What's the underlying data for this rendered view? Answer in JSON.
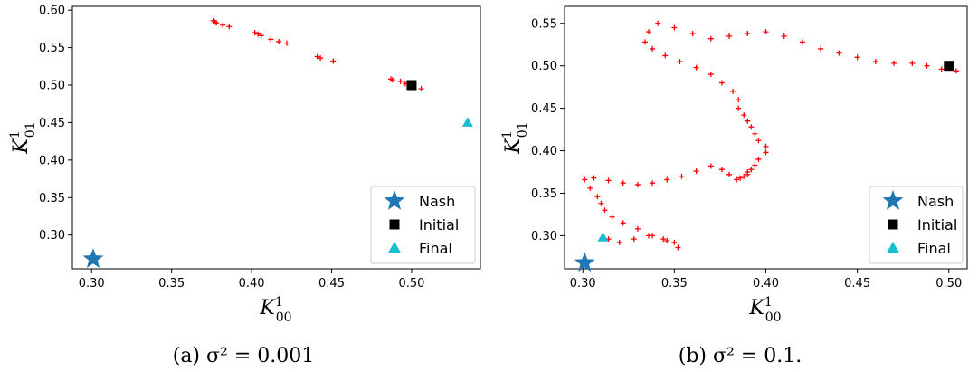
{
  "chart_data": [
    {
      "type": "scatter",
      "caption": "(a) σ² = 0.001",
      "xlabel": "K¹₀₀",
      "ylabel": "K¹₀₁",
      "xlim": [
        0.288,
        0.543
      ],
      "ylim": [
        0.255,
        0.605
      ],
      "xticks": [
        "0.30",
        "0.35",
        "0.40",
        "0.45",
        "0.50"
      ],
      "yticks": [
        "0.30",
        "0.35",
        "0.40",
        "0.45",
        "0.50",
        "0.55",
        "0.60"
      ],
      "grid": false,
      "legend_position": "lower-right",
      "legend": [
        {
          "label": "Nash",
          "marker": "star",
          "color": "#1f77b4"
        },
        {
          "label": "Initial",
          "marker": "square",
          "color": "#000000"
        },
        {
          "label": "Final",
          "marker": "triangle",
          "color": "#17becf"
        }
      ],
      "trajectory_color": "#ff0000",
      "nash": [
        0.301,
        0.268
      ],
      "initial": [
        0.5,
        0.5
      ],
      "final": [
        0.535,
        0.45
      ],
      "trajectory": {
        "x": [
          0.376,
          0.377,
          0.378,
          0.382,
          0.386,
          0.402,
          0.404,
          0.406,
          0.412,
          0.417,
          0.422,
          0.441,
          0.443,
          0.451,
          0.487,
          0.488,
          0.493,
          0.496,
          0.5,
          0.506
        ],
        "y": [
          0.586,
          0.584,
          0.583,
          0.58,
          0.578,
          0.57,
          0.568,
          0.566,
          0.561,
          0.558,
          0.556,
          0.538,
          0.536,
          0.532,
          0.508,
          0.507,
          0.505,
          0.502,
          0.5,
          0.495
        ]
      }
    },
    {
      "type": "scatter",
      "caption": "(b) σ² = 0.1.",
      "xlabel": "K¹₀₀",
      "ylabel": "K¹₀₁",
      "xlim": [
        0.29,
        0.51
      ],
      "ylim": [
        0.261,
        0.57
      ],
      "xticks": [
        "0.30",
        "0.35",
        "0.40",
        "0.45",
        "0.50"
      ],
      "yticks": [
        "0.30",
        "0.35",
        "0.40",
        "0.45",
        "0.50",
        "0.55"
      ],
      "grid": false,
      "legend_position": "lower-right",
      "legend": [
        {
          "label": "Nash",
          "marker": "star",
          "color": "#1f77b4"
        },
        {
          "label": "Initial",
          "marker": "square",
          "color": "#000000"
        },
        {
          "label": "Final",
          "marker": "triangle",
          "color": "#17becf"
        }
      ],
      "trajectory_color": "#ff0000",
      "nash": [
        0.301,
        0.268
      ],
      "initial": [
        0.5,
        0.5
      ],
      "final": [
        0.311,
        0.298
      ],
      "trajectory": {
        "x": [
          0.5,
          0.504,
          0.496,
          0.488,
          0.48,
          0.47,
          0.46,
          0.45,
          0.44,
          0.43,
          0.42,
          0.41,
          0.4,
          0.39,
          0.38,
          0.37,
          0.36,
          0.35,
          0.341,
          0.336,
          0.334,
          0.338,
          0.345,
          0.353,
          0.362,
          0.37,
          0.376,
          0.382,
          0.385,
          0.385,
          0.388,
          0.39,
          0.392,
          0.394,
          0.396,
          0.4,
          0.4,
          0.396,
          0.394,
          0.392,
          0.39,
          0.39,
          0.388,
          0.386,
          0.384,
          0.38,
          0.376,
          0.37,
          0.362,
          0.354,
          0.346,
          0.338,
          0.33,
          0.322,
          0.314,
          0.306,
          0.301,
          0.304,
          0.308,
          0.31,
          0.312,
          0.316,
          0.322,
          0.33,
          0.338,
          0.346,
          0.352,
          0.35,
          0.344,
          0.336,
          0.328,
          0.32,
          0.314
        ],
        "y": [
          0.5,
          0.494,
          0.496,
          0.5,
          0.503,
          0.503,
          0.505,
          0.51,
          0.515,
          0.52,
          0.528,
          0.535,
          0.54,
          0.538,
          0.535,
          0.532,
          0.538,
          0.545,
          0.55,
          0.54,
          0.528,
          0.52,
          0.512,
          0.505,
          0.498,
          0.49,
          0.48,
          0.47,
          0.46,
          0.45,
          0.442,
          0.435,
          0.428,
          0.42,
          0.412,
          0.405,
          0.398,
          0.39,
          0.383,
          0.378,
          0.375,
          0.372,
          0.37,
          0.368,
          0.366,
          0.372,
          0.378,
          0.382,
          0.376,
          0.37,
          0.366,
          0.362,
          0.36,
          0.362,
          0.365,
          0.368,
          0.366,
          0.356,
          0.346,
          0.338,
          0.33,
          0.322,
          0.315,
          0.308,
          0.3,
          0.294,
          0.286,
          0.292,
          0.296,
          0.3,
          0.296,
          0.292,
          0.296
        ]
      }
    }
  ]
}
